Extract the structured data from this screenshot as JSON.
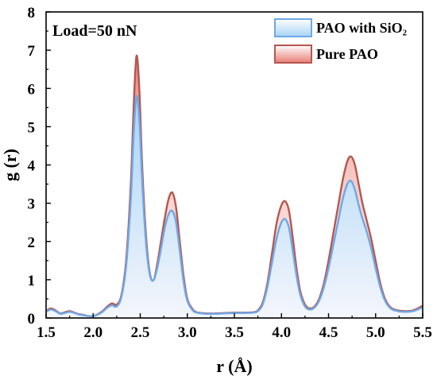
{
  "chart_data": {
    "type": "area",
    "title": "",
    "annotation": "Load=50 nN",
    "xlabel": "r (Å)",
    "ylabel": "g (r)",
    "xlim": [
      1.5,
      5.5
    ],
    "ylim": [
      0,
      8
    ],
    "xticks": [
      "1.5",
      "2.0",
      "2.5",
      "3.0",
      "3.5",
      "4.0",
      "4.5",
      "5.0",
      "5.5"
    ],
    "yticks": [
      "0",
      "1",
      "2",
      "3",
      "4",
      "5",
      "6",
      "7",
      "8"
    ],
    "legend_position": "top-right",
    "grid": false,
    "series": [
      {
        "name": "Pure PAO",
        "line_color": "#b5574f",
        "fill_color": "#e87d74",
        "x": [
          1.5,
          1.55,
          1.6,
          1.65,
          1.7,
          1.75,
          1.8,
          1.85,
          1.9,
          1.95,
          2.0,
          2.05,
          2.1,
          2.15,
          2.2,
          2.25,
          2.3,
          2.35,
          2.4,
          2.43,
          2.46,
          2.49,
          2.52,
          2.56,
          2.6,
          2.64,
          2.68,
          2.72,
          2.76,
          2.8,
          2.84,
          2.88,
          2.92,
          2.96,
          3.0,
          3.05,
          3.1,
          3.2,
          3.3,
          3.4,
          3.5,
          3.6,
          3.7,
          3.75,
          3.8,
          3.85,
          3.9,
          3.95,
          4.0,
          4.04,
          4.08,
          4.12,
          4.16,
          4.2,
          4.25,
          4.3,
          4.35,
          4.4,
          4.45,
          4.5,
          4.55,
          4.6,
          4.65,
          4.7,
          4.74,
          4.78,
          4.82,
          4.86,
          4.9,
          4.95,
          5.0,
          5.05,
          5.1,
          5.15,
          5.2,
          5.3,
          5.4,
          5.5
        ],
        "values": [
          0.18,
          0.25,
          0.2,
          0.12,
          0.15,
          0.18,
          0.14,
          0.1,
          0.08,
          0.05,
          0.05,
          0.1,
          0.18,
          0.3,
          0.38,
          0.35,
          0.6,
          1.5,
          3.5,
          5.5,
          6.85,
          6.0,
          4.0,
          2.2,
          1.2,
          0.98,
          1.4,
          2.0,
          2.6,
          3.1,
          3.28,
          2.9,
          2.0,
          1.1,
          0.5,
          0.25,
          0.15,
          0.12,
          0.12,
          0.13,
          0.14,
          0.14,
          0.15,
          0.2,
          0.4,
          0.9,
          1.7,
          2.5,
          2.95,
          3.05,
          2.8,
          2.1,
          1.3,
          0.7,
          0.35,
          0.25,
          0.3,
          0.5,
          0.9,
          1.5,
          2.2,
          2.9,
          3.6,
          4.1,
          4.22,
          4.0,
          3.5,
          3.0,
          2.6,
          2.1,
          1.5,
          0.9,
          0.5,
          0.3,
          0.22,
          0.18,
          0.2,
          0.32
        ]
      },
      {
        "name": "PAO with SiO₂",
        "line_color": "#6fa8e8",
        "fill_color": "#c5e3f8",
        "x": [
          1.5,
          1.55,
          1.6,
          1.65,
          1.7,
          1.75,
          1.8,
          1.85,
          1.9,
          1.95,
          2.0,
          2.05,
          2.1,
          2.15,
          2.2,
          2.25,
          2.3,
          2.35,
          2.4,
          2.43,
          2.46,
          2.49,
          2.52,
          2.56,
          2.6,
          2.64,
          2.68,
          2.72,
          2.76,
          2.8,
          2.84,
          2.88,
          2.92,
          2.96,
          3.0,
          3.05,
          3.1,
          3.2,
          3.3,
          3.4,
          3.5,
          3.6,
          3.7,
          3.75,
          3.8,
          3.85,
          3.9,
          3.95,
          4.0,
          4.04,
          4.08,
          4.12,
          4.16,
          4.2,
          4.25,
          4.3,
          4.35,
          4.4,
          4.45,
          4.5,
          4.55,
          4.6,
          4.65,
          4.7,
          4.74,
          4.78,
          4.82,
          4.86,
          4.9,
          4.95,
          5.0,
          5.05,
          5.1,
          5.15,
          5.2,
          5.3,
          5.4,
          5.5
        ],
        "values": [
          0.16,
          0.22,
          0.18,
          0.11,
          0.13,
          0.16,
          0.13,
          0.09,
          0.07,
          0.05,
          0.05,
          0.09,
          0.16,
          0.27,
          0.33,
          0.3,
          0.55,
          1.35,
          3.1,
          4.8,
          5.8,
          5.2,
          3.6,
          2.0,
          1.15,
          0.98,
          1.3,
          1.8,
          2.35,
          2.7,
          2.8,
          2.5,
          1.75,
          0.95,
          0.45,
          0.22,
          0.14,
          0.11,
          0.11,
          0.12,
          0.13,
          0.13,
          0.14,
          0.18,
          0.35,
          0.8,
          1.45,
          2.1,
          2.5,
          2.58,
          2.35,
          1.75,
          1.1,
          0.6,
          0.3,
          0.22,
          0.27,
          0.45,
          0.8,
          1.3,
          1.9,
          2.5,
          3.1,
          3.5,
          3.58,
          3.35,
          2.95,
          2.6,
          2.3,
          1.85,
          1.3,
          0.8,
          0.45,
          0.27,
          0.2,
          0.16,
          0.18,
          0.28
        ]
      }
    ]
  }
}
